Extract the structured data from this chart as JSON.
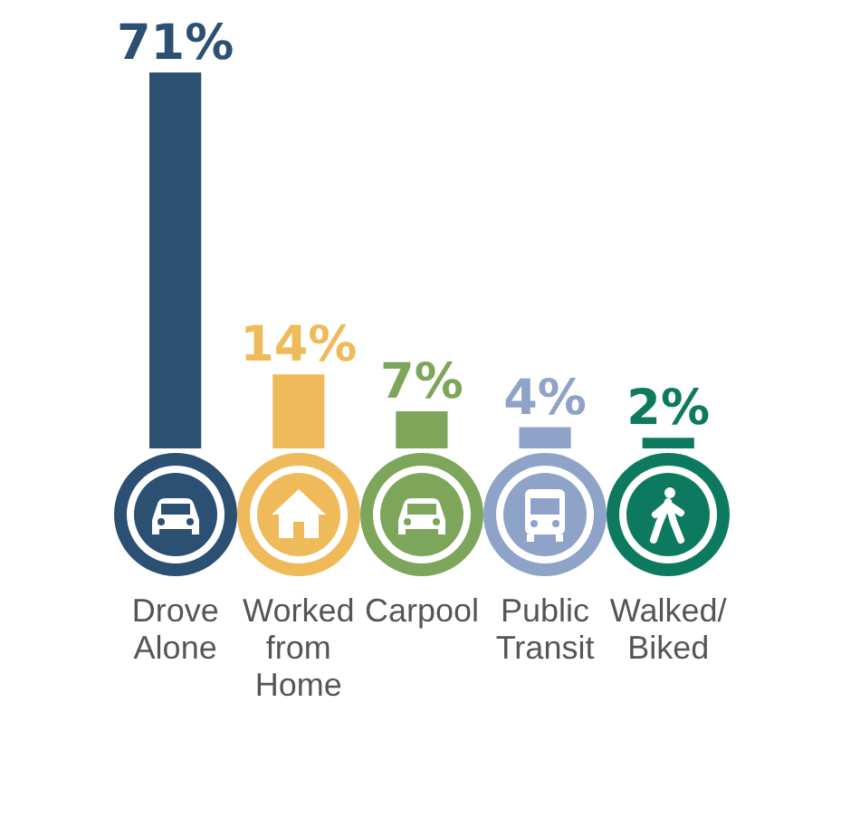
{
  "chart_data": {
    "type": "bar",
    "categories": [
      "Drove Alone",
      "Worked from Home",
      "Carpool",
      "Public Transit",
      "Walked/Biked"
    ],
    "values": [
      71,
      14,
      7,
      4,
      2
    ],
    "value_labels": [
      "71%",
      "14%",
      "7%",
      "4%",
      "2%"
    ],
    "colors": [
      "#2b5072",
      "#efba5a",
      "#7ea65a",
      "#8fa3c8",
      "#0d7a5f"
    ],
    "grid": false,
    "legend": false
  }
}
